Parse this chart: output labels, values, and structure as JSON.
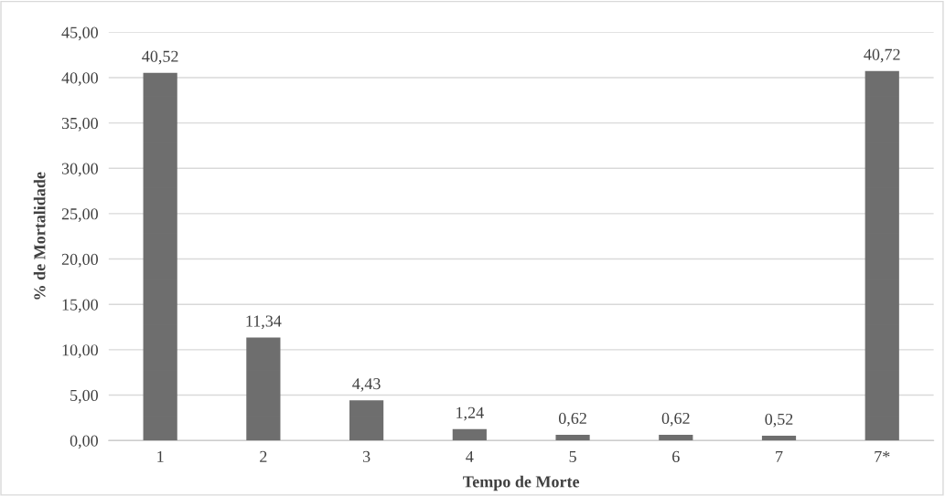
{
  "chart_data": {
    "type": "bar",
    "xlabel": "Tempo de Morte",
    "ylabel": "% de Mortalidade",
    "categories": [
      "1",
      "2",
      "3",
      "4",
      "5",
      "6",
      "7",
      "7*"
    ],
    "values": [
      40.52,
      11.34,
      4.43,
      1.24,
      0.62,
      0.62,
      0.52,
      40.72
    ],
    "value_labels": [
      "40,52",
      "11,34",
      "4,43",
      "1,24",
      "0,62",
      "0,62",
      "0,52",
      "40,72"
    ],
    "color": "#6e6e6e",
    "ylim": [
      0,
      45
    ],
    "yticks": [
      {
        "value": 0,
        "label": "0,00"
      },
      {
        "value": 5,
        "label": "5,00"
      },
      {
        "value": 10,
        "label": "10,00"
      },
      {
        "value": 15,
        "label": "15,00"
      },
      {
        "value": 20,
        "label": "20,00"
      },
      {
        "value": 25,
        "label": "25,00"
      },
      {
        "value": 30,
        "label": "30,00"
      },
      {
        "value": 35,
        "label": "35,00"
      },
      {
        "value": 40,
        "label": "40,00"
      },
      {
        "value": 45,
        "label": "45,00"
      }
    ],
    "grid": "y",
    "legend": false
  }
}
